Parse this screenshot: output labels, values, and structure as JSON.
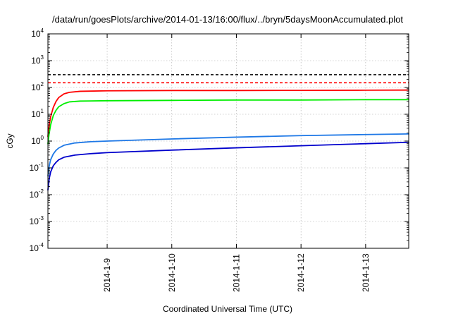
{
  "chart_data": {
    "type": "line",
    "title": "/data/run/goesPlots/archive/2014-01-13/16:00/flux/../bryn/5daysMoonAccumulated.plot",
    "xlabel": "Coordinated Universal Time (UTC)",
    "ylabel": "cGy",
    "y_scale": "log",
    "ylim": [
      0.0001,
      10000
    ],
    "y_ticks": [
      {
        "base": "10",
        "exp": "-4",
        "value": 0.0001
      },
      {
        "base": "10",
        "exp": "-3",
        "value": 0.001
      },
      {
        "base": "10",
        "exp": "-2",
        "value": 0.01
      },
      {
        "base": "10",
        "exp": "-1",
        "value": 0.1
      },
      {
        "base": "10",
        "exp": "0",
        "value": 1
      },
      {
        "base": "10",
        "exp": "1",
        "value": 10
      },
      {
        "base": "10",
        "exp": "2",
        "value": 100
      },
      {
        "base": "10",
        "exp": "3",
        "value": 1000
      },
      {
        "base": "10",
        "exp": "4",
        "value": 10000
      }
    ],
    "xlim": [
      "2014-01-08T02:00",
      "2014-01-13T16:00"
    ],
    "x_ticks": [
      {
        "label": "2014-1-9",
        "value": "2014-01-09T00:00"
      },
      {
        "label": "2014-1-10",
        "value": "2014-01-10T00:00"
      },
      {
        "label": "2014-1-11",
        "value": "2014-01-11T00:00"
      },
      {
        "label": "2014-1-12",
        "value": "2014-01-12T00:00"
      },
      {
        "label": "2014-1-13",
        "value": "2014-01-13T00:00"
      }
    ],
    "grid": true,
    "series": [
      {
        "color": "#000000",
        "dashed": true,
        "x": [
          "2014-01-08T02:00",
          "2014-01-13T16:00"
        ],
        "y": [
          300,
          300
        ]
      },
      {
        "color": "#ff0000",
        "dashed": true,
        "x": [
          "2014-01-08T02:00",
          "2014-01-13T16:00"
        ],
        "y": [
          150,
          150
        ]
      },
      {
        "color": "#ff0000",
        "x": [
          "2014-01-08T02:00",
          "2014-01-08T02:30",
          "2014-01-08T03:00",
          "2014-01-08T04:00",
          "2014-01-08T05:00",
          "2014-01-08T06:00",
          "2014-01-08T08:00",
          "2014-01-08T10:00",
          "2014-01-08T14:00",
          "2014-01-09T00:00",
          "2014-01-10T00:00",
          "2014-01-11T00:00",
          "2014-01-12T00:00",
          "2014-01-13T00:00",
          "2014-01-13T16:00"
        ],
        "y": [
          1.5,
          4,
          8,
          18,
          30,
          42,
          58,
          66,
          72,
          75,
          77,
          77,
          78,
          79,
          80
        ]
      },
      {
        "color": "#00ee00",
        "x": [
          "2014-01-08T02:00",
          "2014-01-08T02:30",
          "2014-01-08T03:00",
          "2014-01-08T04:00",
          "2014-01-08T05:00",
          "2014-01-08T06:00",
          "2014-01-08T08:00",
          "2014-01-08T10:00",
          "2014-01-08T14:00",
          "2014-01-09T00:00",
          "2014-01-10T00:00",
          "2014-01-11T00:00",
          "2014-01-12T00:00",
          "2014-01-13T00:00",
          "2014-01-13T16:00"
        ],
        "y": [
          0.8,
          2,
          4,
          9,
          14,
          19,
          25,
          29,
          31,
          32,
          33,
          34,
          34,
          35,
          35
        ]
      },
      {
        "color": "#1e78e6",
        "x": [
          "2014-01-08T02:00",
          "2014-01-08T02:30",
          "2014-01-08T03:00",
          "2014-01-08T04:00",
          "2014-01-08T05:00",
          "2014-01-08T06:00",
          "2014-01-08T08:00",
          "2014-01-08T12:00",
          "2014-01-08T18:00",
          "2014-01-09T00:00",
          "2014-01-10T00:00",
          "2014-01-11T00:00",
          "2014-01-12T00:00",
          "2014-01-13T00:00",
          "2014-01-13T16:00"
        ],
        "y": [
          0.05,
          0.12,
          0.2,
          0.33,
          0.45,
          0.55,
          0.7,
          0.85,
          0.95,
          1.0,
          1.2,
          1.4,
          1.6,
          1.75,
          1.85
        ]
      },
      {
        "color": "#0000cc",
        "x": [
          "2014-01-08T02:00",
          "2014-01-08T02:30",
          "2014-01-08T03:00",
          "2014-01-08T04:00",
          "2014-01-08T05:00",
          "2014-01-08T06:00",
          "2014-01-08T08:00",
          "2014-01-08T12:00",
          "2014-01-08T18:00",
          "2014-01-09T00:00",
          "2014-01-10T00:00",
          "2014-01-11T00:00",
          "2014-01-12T00:00",
          "2014-01-13T00:00",
          "2014-01-13T16:00"
        ],
        "y": [
          0.015,
          0.04,
          0.07,
          0.12,
          0.16,
          0.2,
          0.25,
          0.3,
          0.34,
          0.37,
          0.46,
          0.56,
          0.67,
          0.8,
          0.9
        ]
      }
    ]
  }
}
